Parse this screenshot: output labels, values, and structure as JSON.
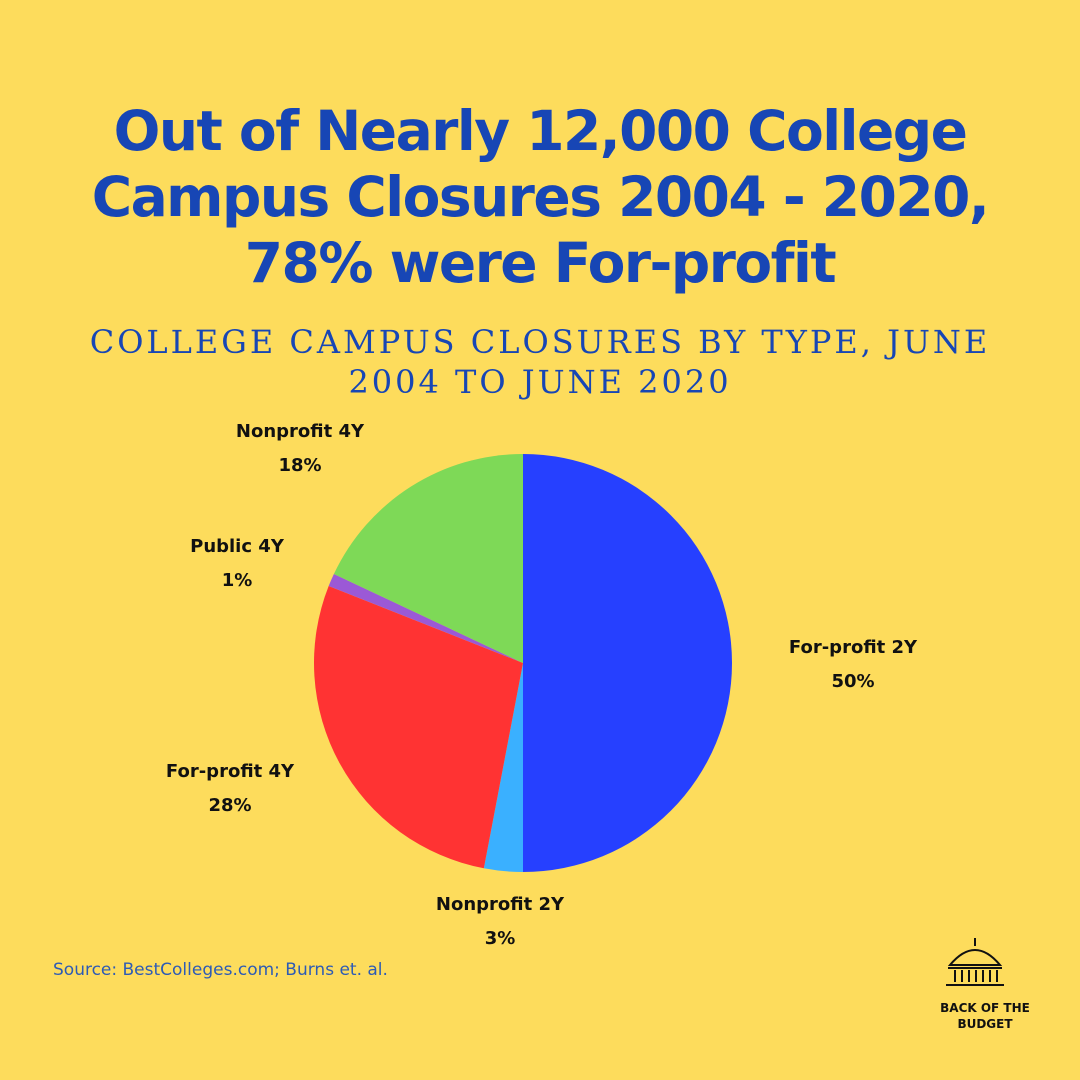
{
  "chart_data": {
    "type": "pie",
    "title": "Out of Nearly 12,000 College Campus Closures 2004 - 2020, 78% were For-profit",
    "subtitle": "COLLEGE CAMPUS CLOSURES BY TYPE, JUNE 2004 TO JUNE 2020",
    "categories": [
      "For-profit 2Y",
      "Nonprofit 2Y",
      "For-profit 4Y",
      "Public 4Y",
      "Nonprofit 4Y"
    ],
    "values": [
      50,
      3,
      28,
      1,
      18
    ],
    "value_labels": [
      "50%",
      "3%",
      "28%",
      "1%",
      "18%"
    ],
    "colors": [
      "#2640ff",
      "#3ab0ff",
      "#ff3333",
      "#9b59d6",
      "#7ed957"
    ],
    "source": "Source: BestColleges.com; Burns et. al.",
    "logo": "BACK OF THE BUDGET"
  }
}
